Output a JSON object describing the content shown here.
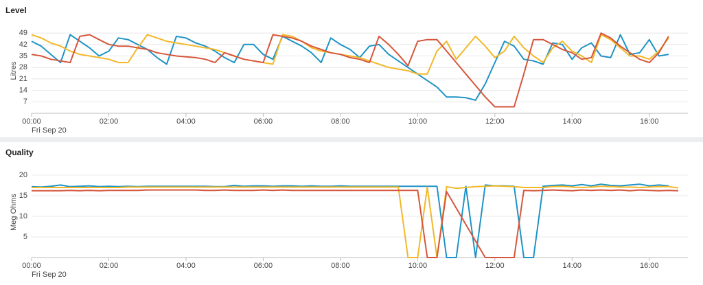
{
  "chart_data": [
    {
      "type": "line",
      "title": "Level",
      "y_label": "Litres",
      "x_sublabel": "Fri Sep 20",
      "grid": true,
      "xlim": [
        0,
        17
      ],
      "ylim": [
        0,
        52
      ],
      "xticks": [
        {
          "value": 0,
          "label": "00:00"
        },
        {
          "value": 2,
          "label": "02:00"
        },
        {
          "value": 4,
          "label": "04:00"
        },
        {
          "value": 6,
          "label": "06:00"
        },
        {
          "value": 8,
          "label": "08:00"
        },
        {
          "value": 10,
          "label": "10:00"
        },
        {
          "value": 12,
          "label": "12:00"
        },
        {
          "value": 14,
          "label": "14:00"
        },
        {
          "value": 16,
          "label": "16:00"
        }
      ],
      "yticks": [
        7,
        14,
        21,
        28,
        35,
        42,
        49
      ],
      "x": [
        0,
        0.25,
        0.5,
        0.75,
        1,
        1.25,
        1.5,
        1.75,
        2,
        2.25,
        2.5,
        2.75,
        3,
        3.25,
        3.5,
        3.75,
        4,
        4.25,
        4.5,
        4.75,
        5,
        5.25,
        5.5,
        5.75,
        6,
        6.25,
        6.5,
        6.75,
        7,
        7.25,
        7.5,
        7.75,
        8,
        8.25,
        8.5,
        8.75,
        9,
        9.25,
        9.5,
        9.75,
        10,
        10.25,
        10.5,
        10.75,
        11,
        11.25,
        11.5,
        11.75,
        12,
        12.25,
        12.5,
        12.75,
        13,
        13.25,
        13.5,
        13.75,
        14,
        14.25,
        14.5,
        14.75,
        15,
        15.25,
        15.5,
        15.75,
        16,
        16.25,
        16.5,
        16.75
      ],
      "series": [
        {
          "color": "#1e93c6",
          "values": [
            44,
            41,
            36,
            31,
            48,
            44,
            40,
            35,
            38,
            46,
            45,
            42,
            39,
            34,
            30,
            47,
            46,
            43,
            41,
            38,
            34,
            31,
            42,
            42,
            36,
            33,
            47,
            44,
            41,
            37,
            31,
            46,
            42,
            39,
            34,
            41,
            42,
            36,
            32,
            28,
            24,
            20,
            16,
            10,
            10,
            9.5,
            8,
            18,
            31,
            44,
            41,
            33,
            32,
            30,
            43,
            42,
            33,
            40,
            43,
            35,
            34,
            48,
            36,
            37,
            45,
            35,
            36,
            null
          ]
        },
        {
          "color": "#f2b827",
          "values": [
            48,
            46,
            43,
            41,
            38,
            36,
            35,
            34,
            33,
            31,
            31,
            40,
            48,
            46,
            44,
            43,
            42,
            41,
            40,
            39,
            37,
            35,
            33,
            32,
            31,
            30,
            48,
            47,
            44,
            40,
            38,
            37,
            36,
            35,
            34,
            32,
            30,
            28,
            27,
            26,
            24,
            24,
            38,
            44,
            33,
            40,
            47,
            41,
            34,
            38,
            47,
            40,
            35,
            31,
            40,
            44,
            38,
            35,
            31,
            48,
            45,
            40,
            35,
            35,
            33,
            38,
            46,
            null
          ]
        },
        {
          "color": "#d6563c",
          "values": [
            36,
            35,
            33,
            32,
            31,
            47,
            48,
            45,
            42,
            41,
            41,
            40,
            39,
            37,
            36,
            35,
            34.5,
            34,
            33,
            31,
            37,
            35,
            33,
            32,
            31,
            48,
            47,
            46,
            44,
            41,
            39,
            37,
            36,
            34,
            33,
            31,
            47,
            42,
            36,
            29,
            44,
            45,
            45,
            38,
            31,
            24,
            17,
            10,
            4,
            4,
            4,
            24,
            45,
            45,
            42,
            39,
            37,
            33,
            34,
            49,
            46,
            41,
            37,
            33,
            31,
            37,
            47,
            null
          ]
        }
      ]
    },
    {
      "type": "line",
      "title": "Quality",
      "y_label": "Meg Ohms",
      "x_sublabel": "Fri Sep 20",
      "grid": true,
      "xlim": [
        0,
        17
      ],
      "ylim": [
        0,
        22
      ],
      "xticks": [
        {
          "value": 0,
          "label": "00:00"
        },
        {
          "value": 2,
          "label": "02:00"
        },
        {
          "value": 4,
          "label": "04:00"
        },
        {
          "value": 6,
          "label": "06:00"
        },
        {
          "value": 8,
          "label": "08:00"
        },
        {
          "value": 10,
          "label": "10:00"
        },
        {
          "value": 12,
          "label": "12:00"
        },
        {
          "value": 14,
          "label": "14:00"
        },
        {
          "value": 16,
          "label": "16:00"
        }
      ],
      "yticks": [
        5,
        10,
        15,
        20
      ],
      "x": [
        0,
        0.25,
        0.5,
        0.75,
        1,
        1.25,
        1.5,
        1.75,
        2,
        2.25,
        2.5,
        2.75,
        3,
        3.25,
        3.5,
        3.75,
        4,
        4.25,
        4.5,
        4.75,
        5,
        5.25,
        5.5,
        5.75,
        6,
        6.25,
        6.5,
        6.75,
        7,
        7.25,
        7.5,
        7.75,
        8,
        8.25,
        8.5,
        8.75,
        9,
        9.25,
        9.5,
        9.75,
        10,
        10.25,
        10.5,
        10.75,
        11,
        11.25,
        11.5,
        11.75,
        12,
        12.25,
        12.5,
        12.75,
        13,
        13.25,
        13.5,
        13.75,
        14,
        14.25,
        14.5,
        14.75,
        15,
        15.25,
        15.5,
        15.75,
        16,
        16.25,
        16.5,
        16.75
      ],
      "series": [
        {
          "color": "#1e93c6",
          "values": [
            17.2,
            17.1,
            17.3,
            17.6,
            17.2,
            17.3,
            17.4,
            17.2,
            17.3,
            17.2,
            17.3,
            17.2,
            17.3,
            17.3,
            17.3,
            17.3,
            17.3,
            17.3,
            17.3,
            17.2,
            17.2,
            17.5,
            17.3,
            17.4,
            17.4,
            17.3,
            17.4,
            17.4,
            17.3,
            17.4,
            17.3,
            17.3,
            17.4,
            17.3,
            17.3,
            17.3,
            17.3,
            17.3,
            17.3,
            17.3,
            17.3,
            17.3,
            17.3,
            0,
            0,
            17.3,
            0,
            17.6,
            17.4,
            17.4,
            17.3,
            0,
            0,
            17.3,
            17.5,
            17.6,
            17.4,
            17.7,
            17.4,
            17.8,
            17.5,
            17.4,
            17.6,
            17.8,
            17.4,
            17.6,
            17.4,
            null
          ]
        },
        {
          "color": "#f2b827",
          "values": [
            17,
            17,
            17,
            17,
            17,
            17,
            17,
            17,
            17,
            17,
            17.1,
            17.1,
            17.1,
            17.1,
            17.1,
            17.1,
            17.1,
            17.1,
            17.1,
            17.1,
            17.1,
            17.1,
            17.1,
            17.1,
            17.1,
            17.1,
            17.1,
            17.1,
            17.1,
            17.1,
            17.1,
            17.1,
            17.1,
            17.1,
            17.1,
            17.1,
            17.1,
            17.1,
            17.1,
            0,
            0,
            17.1,
            0,
            17.2,
            16.8,
            17,
            17.2,
            17.3,
            17.4,
            17.3,
            17.2,
            17,
            17,
            17,
            17.2,
            17.3,
            17.1,
            17,
            17.1,
            17.3,
            17.2,
            17.1,
            17.1,
            17,
            17.1,
            17.2,
            17.2,
            16.9
          ]
        },
        {
          "color": "#d6563c",
          "values": [
            16.2,
            16.2,
            16.2,
            16.2,
            16.3,
            16.2,
            16.3,
            16.2,
            16.3,
            16.3,
            16.3,
            16.3,
            16.4,
            16.4,
            16.4,
            16.4,
            16.4,
            16.4,
            16.3,
            16.3,
            16.4,
            16.3,
            16.3,
            16.3,
            16.4,
            16.3,
            16.4,
            16.3,
            16.3,
            16.3,
            16.3,
            16.3,
            16.3,
            16.3,
            16.3,
            16.3,
            16.3,
            16.3,
            16.3,
            16.3,
            16.3,
            0,
            0,
            16,
            12,
            8,
            4,
            0,
            0,
            0,
            0,
            16.3,
            16.2,
            16.3,
            16.4,
            16.3,
            16.2,
            16.4,
            16.3,
            16.4,
            16.3,
            16.4,
            16.2,
            16.4,
            16.3,
            16.2,
            16.3,
            16.2
          ]
        }
      ]
    }
  ]
}
